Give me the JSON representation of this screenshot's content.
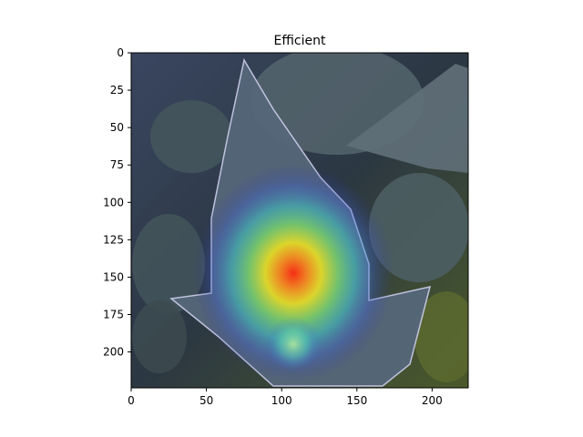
{
  "chart_data": {
    "type": "heatmap",
    "title": "Efficient",
    "xlabel": "",
    "ylabel": "",
    "xlim": [
      0,
      224
    ],
    "ylim": [
      224,
      0
    ],
    "x_ticks": [
      0,
      50,
      100,
      150,
      200
    ],
    "y_ticks": [
      0,
      25,
      50,
      75,
      100,
      125,
      150,
      175,
      200
    ],
    "grid": false,
    "colormap": "jet",
    "background": "photo of a leaf over foliage (grad-cam overlay)",
    "heat_peak": {
      "x": 110,
      "y": 148
    }
  },
  "colors": {
    "frame": "#000000",
    "leaf": "#4e5d6c",
    "foliage": "#2c3a3f"
  }
}
